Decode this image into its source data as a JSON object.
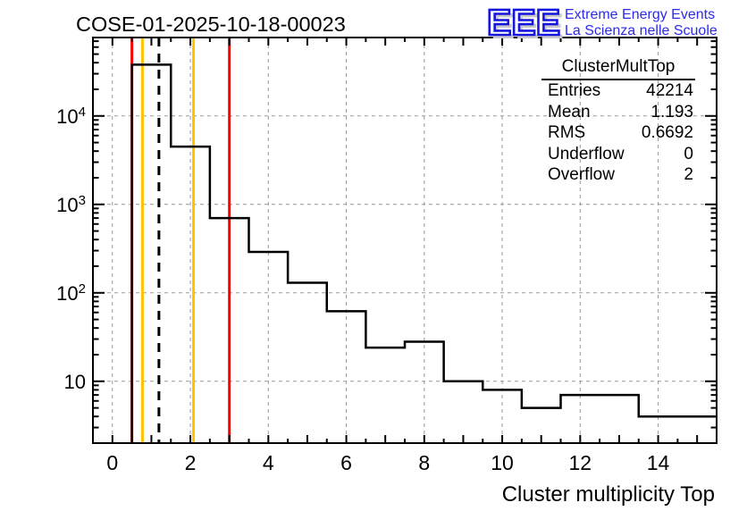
{
  "title": "COSE-01-2025-10-18-00023",
  "logo": {
    "acronym": "EEE",
    "tagline_line1": "Extreme Energy Events",
    "tagline_line2": "La Scienza nelle Scuole",
    "letter_color": "#1515dd",
    "tagline_color": "#2b2be8",
    "shadow_color": "#c9c9c9"
  },
  "stats_box": {
    "title": "ClusterMultTop",
    "rows": [
      {
        "label": "Entries",
        "value": "42214"
      },
      {
        "label": "Mean",
        "value": "1.193"
      },
      {
        "label": "RMS",
        "value": "0.6692"
      },
      {
        "label": "Underflow",
        "value": "0"
      },
      {
        "label": "Overflow",
        "value": "2"
      }
    ]
  },
  "chart_data": {
    "type": "bar",
    "subtype": "step-histogram",
    "title": "COSE-01-2025-10-18-00023",
    "xlabel": "Cluster multiplicity Top",
    "ylabel": "",
    "x_range": [
      -0.5,
      15.5
    ],
    "y_range": [
      2,
      77000
    ],
    "y_scale": "log",
    "grid": true,
    "bin_width": 1,
    "bin_centers": [
      0,
      1,
      2,
      3,
      4,
      5,
      6,
      7,
      8,
      9,
      10,
      11,
      12,
      13,
      14,
      15
    ],
    "counts": [
      0,
      38000,
      4500,
      700,
      290,
      130,
      62,
      24,
      28,
      10,
      8,
      5,
      7,
      7,
      4,
      4
    ],
    "x_tick_minor_step": 0.5,
    "x_labeled_ticks": [
      0,
      2,
      4,
      6,
      8,
      10,
      12,
      14
    ],
    "y_labeled_ticks": [
      {
        "value": 10,
        "base": "10",
        "exp": ""
      },
      {
        "value": 100,
        "base": "10",
        "exp": "2"
      },
      {
        "value": 1000,
        "base": "10",
        "exp": "3"
      },
      {
        "value": 10000,
        "base": "10",
        "exp": "4"
      }
    ],
    "marker_lines": [
      {
        "x": 0.5,
        "color": "#ff0000",
        "style": "solid",
        "name": "red-lower-limit-line"
      },
      {
        "x": 0.77,
        "color": "#ffc300",
        "style": "solid",
        "name": "yellow-lower-warning-line"
      },
      {
        "x": 1.193,
        "color": "#000000",
        "style": "dashed",
        "name": "mean-line"
      },
      {
        "x": 2.08,
        "color": "#ffc300",
        "style": "solid",
        "name": "yellow-upper-warning-line"
      },
      {
        "x": 3.0,
        "color": "#ff0000",
        "style": "solid",
        "name": "red-upper-limit-line"
      }
    ],
    "colors": {
      "histogram_line": "#000000",
      "grid": "#999999",
      "frame": "#000000",
      "text": "#000000"
    }
  }
}
